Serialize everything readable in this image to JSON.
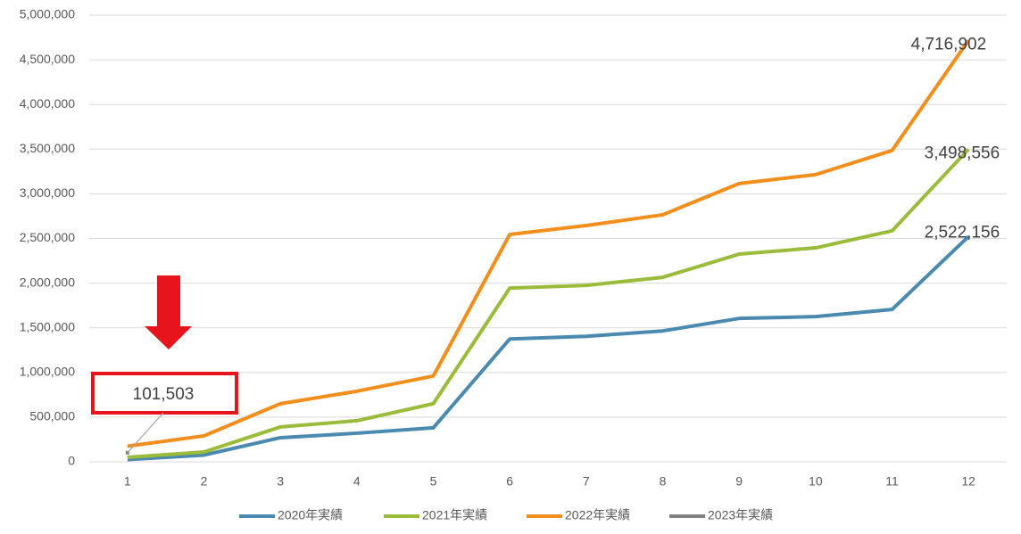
{
  "chart_data": {
    "type": "line",
    "categories": [
      "1",
      "2",
      "3",
      "4",
      "5",
      "6",
      "7",
      "8",
      "9",
      "10",
      "11",
      "12"
    ],
    "ylim": [
      0,
      5000000
    ],
    "yticks": [
      0,
      {
        "value": 500000,
        "label": "500,000"
      },
      {
        "value": 1000000,
        "label": "1,000,000"
      },
      {
        "value": 1500000,
        "label": "1,500,000"
      },
      {
        "value": 2000000,
        "label": "2,000,000"
      },
      {
        "value": 2500000,
        "label": "2,500,000"
      },
      {
        "value": 3000000,
        "label": "3,000,000"
      },
      {
        "value": 3500000,
        "label": "3,500,000"
      },
      {
        "value": 4000000,
        "label": "4,000,000"
      },
      {
        "value": 4500000,
        "label": "4,500,000"
      },
      {
        "value": 5000000,
        "label": "5,000,000"
      }
    ],
    "grid": true,
    "legend": "bottom",
    "series": [
      {
        "name": "2020年実績",
        "color": "#4a89b0",
        "values": [
          25000,
          75000,
          270000,
          320000,
          380000,
          1375000,
          1405000,
          1465000,
          1605000,
          1625000,
          1705000,
          2522156
        ],
        "value_labels": [
          null,
          null,
          null,
          null,
          null,
          null,
          null,
          null,
          null,
          null,
          null,
          "2,522,156"
        ]
      },
      {
        "name": "2021年実績",
        "color": "#9bbb3b",
        "values": [
          50000,
          110000,
          390000,
          460000,
          650000,
          1945000,
          1975000,
          2065000,
          2325000,
          2395000,
          2585000,
          3498556
        ],
        "value_labels": [
          null,
          null,
          null,
          null,
          null,
          null,
          null,
          null,
          null,
          null,
          null,
          "3,498,556"
        ]
      },
      {
        "name": "2022年実績",
        "color": "#f28e1c",
        "values": [
          175000,
          290000,
          650000,
          790000,
          960000,
          2545000,
          2645000,
          2765000,
          3115000,
          3215000,
          3485000,
          4716902
        ],
        "value_labels": [
          null,
          null,
          null,
          null,
          null,
          null,
          null,
          null,
          null,
          null,
          null,
          "4,716,902"
        ]
      },
      {
        "name": "2023年実績",
        "color": "#808080",
        "values": [
          101503,
          null,
          null,
          null,
          null,
          null,
          null,
          null,
          null,
          null,
          null,
          null
        ],
        "value_labels": [
          "101,503",
          null,
          null,
          null,
          null,
          null,
          null,
          null,
          null,
          null,
          null,
          null
        ]
      }
    ]
  }
}
